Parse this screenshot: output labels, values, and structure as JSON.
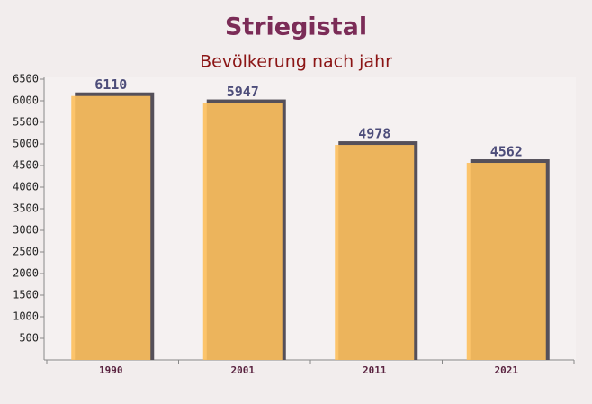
{
  "chart_data": {
    "type": "bar",
    "title": "Striegistal",
    "subtitle": "Bevölkerung nach jahr",
    "categories": [
      "1990",
      "2001",
      "2011",
      "2021"
    ],
    "values": [
      6110,
      5947,
      4978,
      4562
    ],
    "color": "#fdbf5c",
    "ylim": [
      0,
      6500
    ],
    "yticks": [
      500,
      1000,
      1500,
      2000,
      2500,
      3000,
      3500,
      4000,
      4500,
      5000,
      5500,
      6000,
      6500
    ]
  }
}
